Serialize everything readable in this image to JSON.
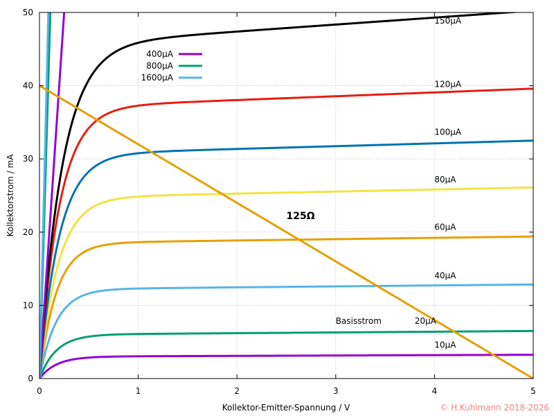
{
  "chart_data": {
    "type": "line",
    "title": "",
    "xlabel": "Kollektor-Emitter-Spannung / V",
    "ylabel": "Kollektorstrom / mA",
    "xlim": [
      0,
      5
    ],
    "ylim": [
      0,
      50
    ],
    "x_ticks": [
      "0",
      "1",
      "2",
      "3",
      "4",
      "5"
    ],
    "y_ticks": [
      "0",
      "10",
      "20",
      "30",
      "40",
      "50"
    ],
    "grid": true,
    "legend_position": "top-left",
    "legend": [
      "400µA",
      "800µA",
      "1600µA"
    ],
    "series": [
      {
        "name": "10µA",
        "color": "#9400d3",
        "i_sat": 3.0,
        "slope": 0.05,
        "vk": 0.17,
        "label": "10µA",
        "label_x": 4.0,
        "label_y": 4.2
      },
      {
        "name": "20µA",
        "color": "#009e73",
        "i_sat": 6.0,
        "slope": 0.1,
        "vk": 0.17,
        "label": "20µA",
        "label_x": 3.8,
        "label_y": 7.5
      },
      {
        "name": "40µA",
        "color": "#56b4e9",
        "i_sat": 12.2,
        "slope": 0.13,
        "vk": 0.17,
        "label": "40µA",
        "label_x": 4.0,
        "label_y": 13.7
      },
      {
        "name": "60µA",
        "color": "#e69f00",
        "i_sat": 18.5,
        "slope": 0.18,
        "vk": 0.17,
        "label": "60µA",
        "label_x": 4.0,
        "label_y": 20.3
      },
      {
        "name": "80µA",
        "color": "#f0e442",
        "i_sat": 24.7,
        "slope": 0.28,
        "vk": 0.19,
        "label": "80µA",
        "label_x": 4.0,
        "label_y": 26.8
      },
      {
        "name": "100µA",
        "color": "#0072b2",
        "i_sat": 30.6,
        "slope": 0.38,
        "vk": 0.2,
        "label": "100µA",
        "label_x": 4.0,
        "label_y": 33.3
      },
      {
        "name": "120µA",
        "color": "#e51e10",
        "i_sat": 37.0,
        "slope": 0.52,
        "vk": 0.2,
        "label": "120µA",
        "label_x": 4.0,
        "label_y": 39.8
      },
      {
        "name": "150µA",
        "color": "#000000",
        "i_sat": 45.5,
        "slope": 0.95,
        "vk": 0.23,
        "label": "150µA",
        "label_x": 4.0,
        "label_y": 48.5
      },
      {
        "name": "400µA",
        "color": "#9400d3",
        "points": [
          [
            0,
            0
          ],
          [
            0.25,
            50
          ]
        ]
      },
      {
        "name": "800µA",
        "color": "#009e73",
        "points": [
          [
            0,
            0
          ],
          [
            0.11,
            50
          ]
        ]
      },
      {
        "name": "1600µA",
        "color": "#56b4e9",
        "points": [
          [
            0,
            0
          ],
          [
            0.09,
            50
          ]
        ]
      },
      {
        "name": "125Ω",
        "color": "#e69f00",
        "points": [
          [
            0,
            40
          ],
          [
            5,
            0
          ]
        ]
      }
    ],
    "annotations": [
      {
        "text": "Basisstrom",
        "x": 3.0,
        "y": 7.5
      },
      {
        "text": "125Ω",
        "x": 2.5,
        "y": 21.8,
        "bold": true
      }
    ]
  },
  "copyright": "© H.Kuhlmann 2018-2026"
}
